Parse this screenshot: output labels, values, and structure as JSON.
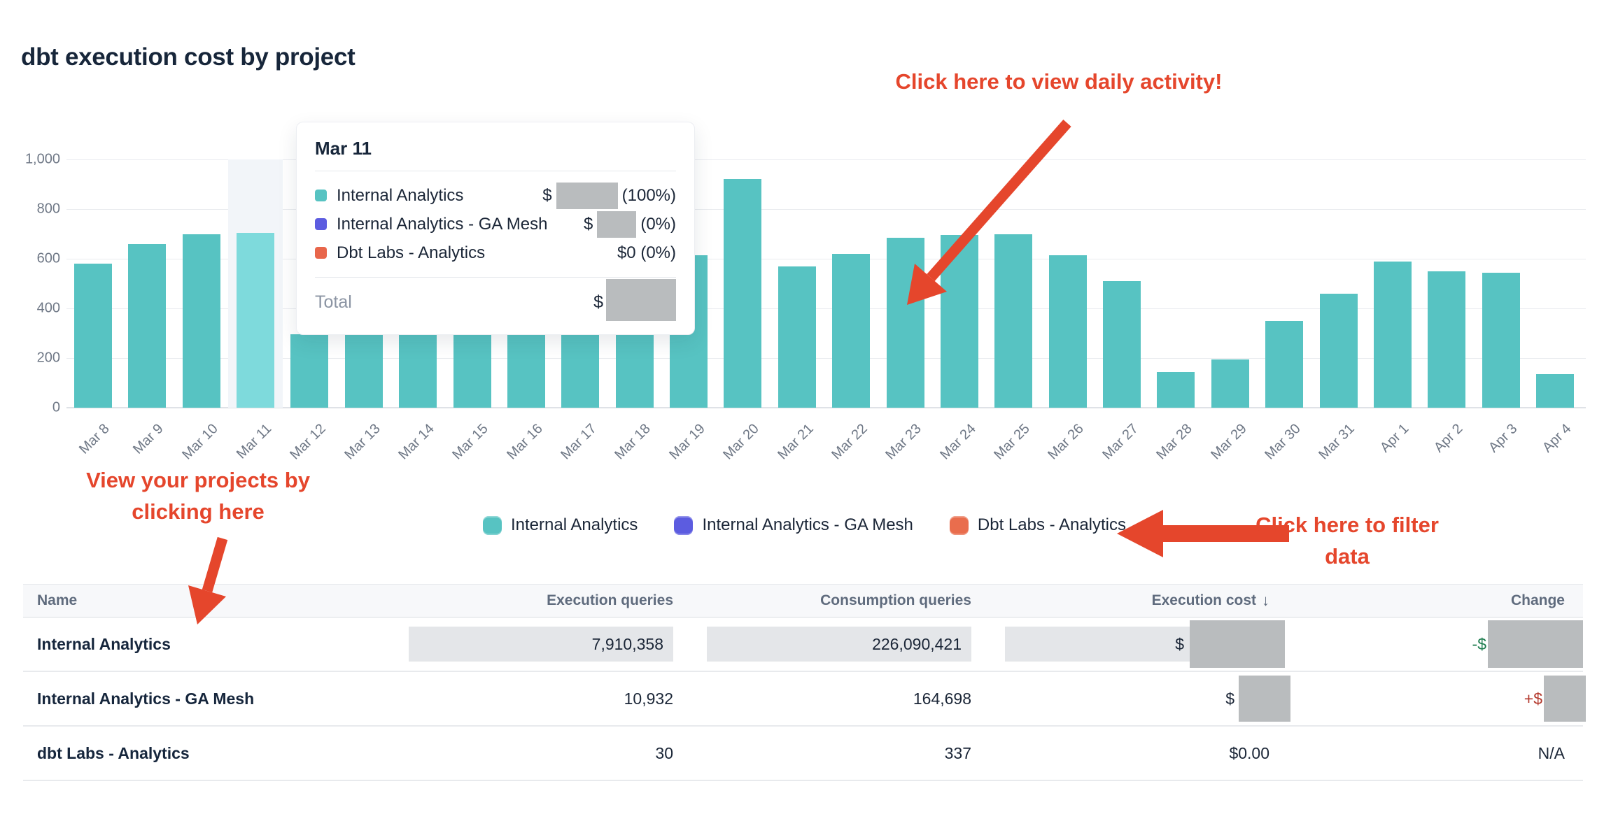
{
  "page": {
    "title": "dbt execution cost by project"
  },
  "chart_data": {
    "type": "bar",
    "title": "dbt execution cost by project",
    "xlabel": "",
    "ylabel": "",
    "ylim": [
      0,
      1000
    ],
    "yticks": [
      0,
      200,
      400,
      600,
      800,
      1000
    ],
    "ytick_labels": [
      "0",
      "200",
      "400",
      "600",
      "800",
      "1,000"
    ],
    "grid": true,
    "bar_color": "#57c3c2",
    "highlight_bar_color": "#7edadc",
    "highlighted_category": "Mar 11",
    "categories": [
      "Mar 8",
      "Mar 9",
      "Mar 10",
      "Mar 11",
      "Mar 12",
      "Mar 13",
      "Mar 14",
      "Mar 15",
      "Mar 16",
      "Mar 17",
      "Mar 18",
      "Mar 19",
      "Mar 20",
      "Mar 21",
      "Mar 22",
      "Mar 23",
      "Mar 24",
      "Mar 25",
      "Mar 26",
      "Mar 27",
      "Mar 28",
      "Mar 29",
      "Mar 30",
      "Mar 31",
      "Apr 1",
      "Apr 2",
      "Apr 3",
      "Apr 4"
    ],
    "values": [
      580,
      660,
      700,
      705,
      295,
      295,
      295,
      295,
      295,
      295,
      295,
      615,
      920,
      570,
      620,
      685,
      695,
      700,
      615,
      510,
      145,
      195,
      350,
      460,
      590,
      550,
      545,
      135
    ],
    "note": "Bars for Mar 12 - Mar 18 are hidden behind the tooltip; heights approximate",
    "hidden_behind_tooltip": [
      "Mar 12",
      "Mar 13",
      "Mar 14",
      "Mar 15",
      "Mar 16",
      "Mar 17",
      "Mar 18"
    ],
    "legend_position": "bottom"
  },
  "tooltip": {
    "title": "Mar 11",
    "rows": [
      {
        "label": "Internal Analytics",
        "color": "#57c3c2",
        "value_prefix": "$",
        "value_redacted": true,
        "pct": "(100%)"
      },
      {
        "label": "Internal Analytics - GA Mesh",
        "color": "#5c5ce0",
        "value_prefix": "$",
        "value_redacted": true,
        "pct": "(0%)"
      },
      {
        "label": "Dbt Labs - Analytics",
        "color": "#e8664b",
        "value_prefix": "$0",
        "value_redacted": false,
        "pct": "(0%)"
      }
    ],
    "total_label": "Total",
    "total_prefix": "$",
    "total_redacted": true
  },
  "legend": {
    "items": [
      {
        "label": "Internal Analytics",
        "color": "#57c3c2"
      },
      {
        "label": "Internal Analytics - GA Mesh",
        "color": "#5c5ce0"
      },
      {
        "label": "Dbt Labs - Analytics",
        "color": "#e96d4d"
      }
    ]
  },
  "annotations": {
    "color": "#e5462c",
    "daily_activity": "Click here to view daily activity!",
    "projects_line1": "View your projects by",
    "projects_line2": "clicking here",
    "filter_line1": "Click here to filter",
    "filter_line2": "data"
  },
  "table": {
    "columns": [
      "Name",
      "Execution queries",
      "Consumption queries",
      "Execution cost",
      "Change"
    ],
    "sort_column": "Execution cost",
    "sort_icon": "↓",
    "rows": [
      {
        "name": "Internal Analytics",
        "execution_queries": "7,910,358",
        "consumption_queries": "226,090,421",
        "execution_cost_prefix": "$",
        "execution_cost_redacted": true,
        "change_prefix": "-$",
        "change_redacted": true,
        "change_direction": "negative",
        "highlighted": true
      },
      {
        "name": "Internal Analytics - GA Mesh",
        "execution_queries": "10,932",
        "consumption_queries": "164,698",
        "execution_cost_prefix": "$",
        "execution_cost_redacted": true,
        "change_prefix": "+$",
        "change_redacted": true,
        "change_direction": "positive",
        "highlighted": false
      },
      {
        "name": "dbt Labs - Analytics",
        "execution_queries": "30",
        "consumption_queries": "337",
        "execution_cost": "$0.00",
        "change": "N/A",
        "highlighted": false
      }
    ]
  }
}
